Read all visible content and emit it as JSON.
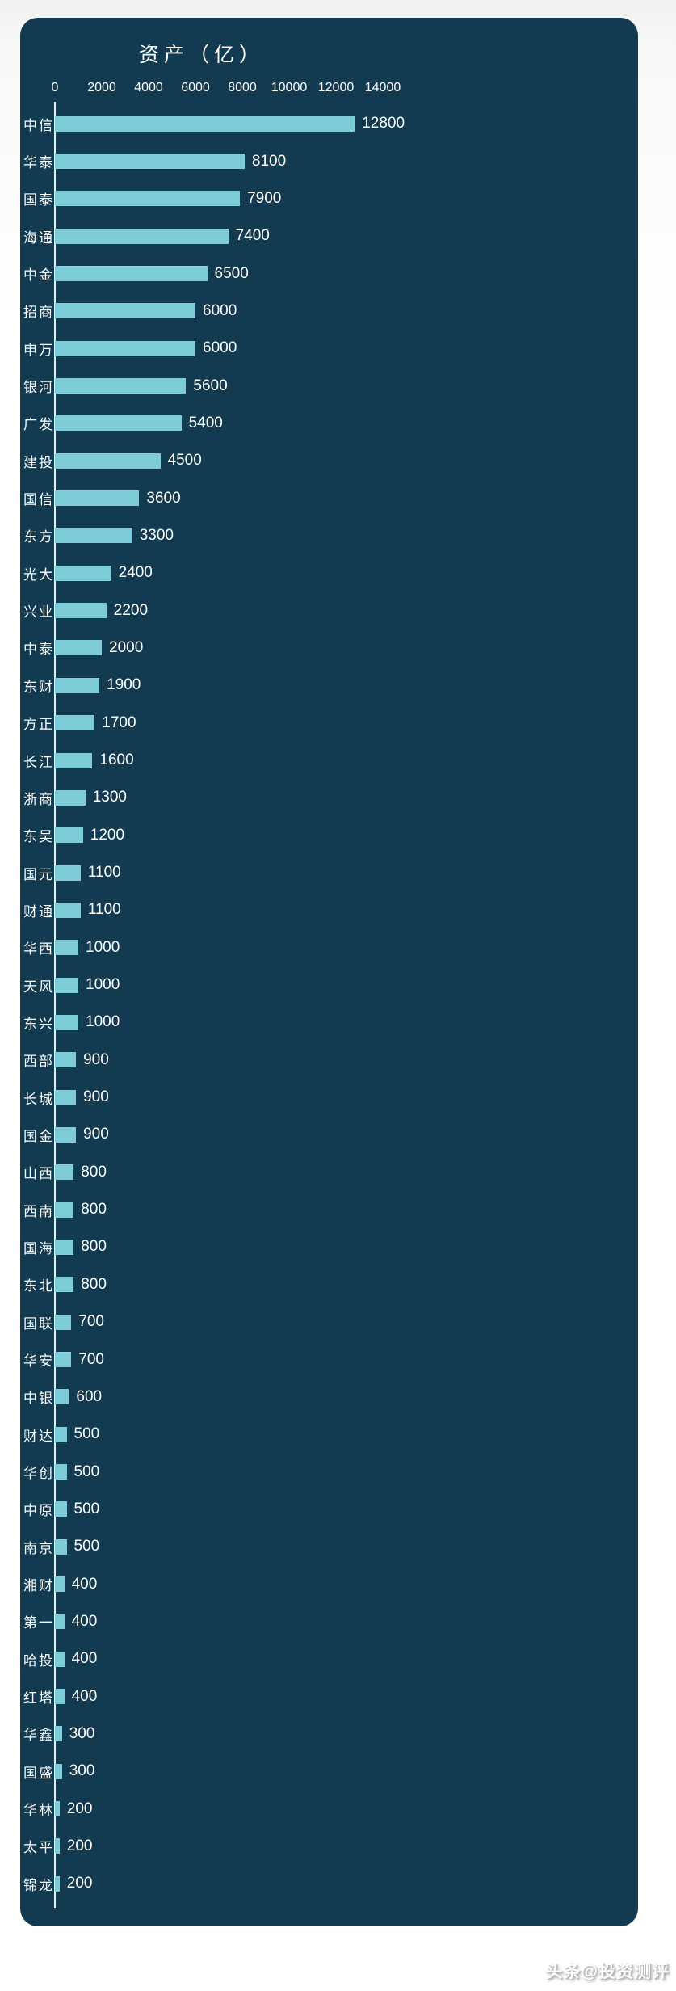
{
  "watermark": {
    "text": "头条@投资测评"
  },
  "chart_data": {
    "type": "bar",
    "orientation": "horizontal",
    "title": "资产（亿）",
    "xlabel": "",
    "ylabel": "",
    "xlim": [
      0,
      14000
    ],
    "x_ticks": [
      0,
      2000,
      4000,
      6000,
      8000,
      10000,
      12000,
      14000
    ],
    "grid": false,
    "bar_color": "#7fccd9",
    "background_color": "#123a50",
    "text_color": "#ffffff",
    "categories": [
      "中信",
      "华泰",
      "国泰",
      "海通",
      "中金",
      "招商",
      "申万",
      "银河",
      "广发",
      "建投",
      "国信",
      "东方",
      "光大",
      "兴业",
      "中泰",
      "东财",
      "方正",
      "长江",
      "浙商",
      "东吴",
      "国元",
      "财通",
      "华西",
      "天风",
      "东兴",
      "西部",
      "长城",
      "国金",
      "山西",
      "西南",
      "国海",
      "东北",
      "国联",
      "华安",
      "中银",
      "财达",
      "华创",
      "中原",
      "南京",
      "湘财",
      "第一",
      "哈投",
      "红塔",
      "华鑫",
      "国盛",
      "华林",
      "太平",
      "锦龙"
    ],
    "values": [
      12800,
      8100,
      7900,
      7400,
      6500,
      6000,
      6000,
      5600,
      5400,
      4500,
      3600,
      3300,
      2400,
      2200,
      2000,
      1900,
      1700,
      1600,
      1300,
      1200,
      1100,
      1100,
      1000,
      1000,
      1000,
      900,
      900,
      900,
      800,
      800,
      800,
      800,
      700,
      700,
      600,
      500,
      500,
      500,
      500,
      400,
      400,
      400,
      400,
      300,
      300,
      200,
      200,
      200
    ]
  }
}
